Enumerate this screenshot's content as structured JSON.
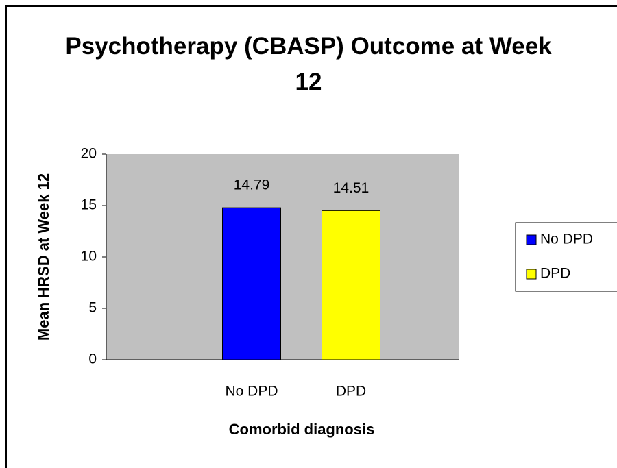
{
  "chart_data": {
    "type": "bar",
    "title": "Psychotherapy (CBASP) Outcome at Week 12",
    "categories": [
      "No DPD",
      "DPD"
    ],
    "values": [
      14.79,
      14.51
    ],
    "colors": [
      "#0000ff",
      "#ffff00"
    ],
    "x_label": "Comorbid diagnosis",
    "y_label": "Mean HRSD at Week 12",
    "ylim": [
      0,
      20
    ],
    "yticks": [
      0,
      5,
      10,
      15,
      20
    ],
    "legend": "right"
  }
}
